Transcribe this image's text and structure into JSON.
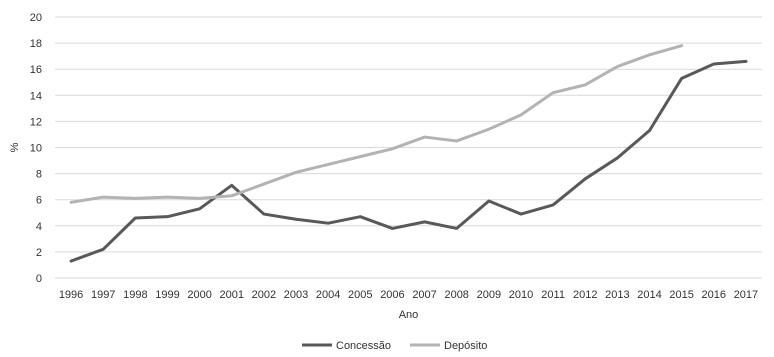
{
  "chart_data": {
    "type": "line",
    "title": "",
    "xlabel": "Ano",
    "ylabel": "%",
    "ylim": [
      0,
      20
    ],
    "yticks": [
      0,
      2,
      4,
      6,
      8,
      10,
      12,
      14,
      16,
      18,
      20
    ],
    "grid": true,
    "legend": "bottom",
    "x": [
      "1996",
      "1997",
      "1998",
      "1999",
      "2000",
      "2001",
      "2002",
      "2003",
      "2004",
      "2005",
      "2006",
      "2007",
      "2008",
      "2009",
      "2010",
      "2011",
      "2012",
      "2013",
      "2014",
      "2015",
      "2016",
      "2017"
    ],
    "series": [
      {
        "name": "Concessão",
        "color": "#595959",
        "values": [
          1.3,
          2.2,
          4.6,
          4.7,
          5.3,
          7.1,
          4.9,
          4.5,
          4.2,
          4.7,
          3.8,
          4.3,
          3.8,
          5.9,
          4.9,
          5.6,
          7.6,
          9.2,
          11.3,
          15.3,
          16.4,
          16.6
        ]
      },
      {
        "name": "Depósito",
        "color": "#b3b3b3",
        "values": [
          5.8,
          6.2,
          6.1,
          6.2,
          6.1,
          6.3,
          7.2,
          8.1,
          8.7,
          9.3,
          9.9,
          10.8,
          10.5,
          11.4,
          12.5,
          14.2,
          14.8,
          16.2,
          17.1,
          17.8,
          null,
          null
        ]
      }
    ]
  }
}
